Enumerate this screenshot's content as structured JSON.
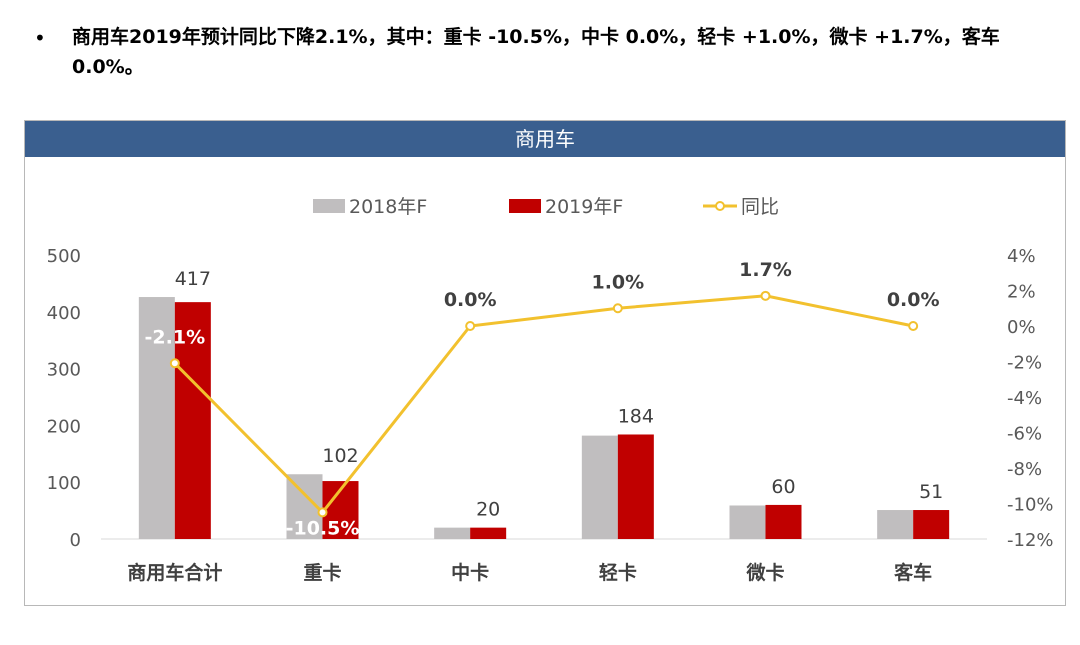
{
  "bullet": {
    "marker": "•",
    "text": "商用车2019年预计同比下降2.1%，其中：重卡 -10.5%，中卡 0.0%，轻卡 +1.0%，微卡 +1.7%，客车 0.0%。"
  },
  "colors": {
    "header_bg": "#3a5f8f",
    "series_2018": "#c0bebf",
    "series_2019": "#c00000",
    "yoy_line": "#f2c12e"
  },
  "chart_data": {
    "type": "bar",
    "title": "商用车",
    "categories": [
      "商用车合计",
      "重卡",
      "中卡",
      "轻卡",
      "微卡",
      "客车"
    ],
    "series": [
      {
        "name": "2018年F",
        "type": "bar",
        "axis": "left",
        "values": [
          426,
          114,
          20,
          182,
          59,
          51
        ]
      },
      {
        "name": "2019年F",
        "type": "bar",
        "axis": "left",
        "values": [
          417,
          102,
          20,
          184,
          60,
          51
        ],
        "labels": [
          "417",
          "102",
          "20",
          "184",
          "60",
          "51"
        ]
      },
      {
        "name": "同比",
        "type": "line",
        "axis": "right",
        "values": [
          -2.1,
          -10.5,
          0.0,
          1.0,
          1.7,
          0.0
        ],
        "labels": [
          "-2.1%",
          "-10.5%",
          "0.0%",
          "1.0%",
          "1.7%",
          "0.0%"
        ]
      }
    ],
    "y_left": {
      "ylim": [
        0,
        500
      ],
      "ticks": [
        "0",
        "100",
        "200",
        "300",
        "400",
        "500"
      ]
    },
    "y_right": {
      "ylim": [
        -12,
        4
      ],
      "ticks": [
        "-12%",
        "-10%",
        "-8%",
        "-6%",
        "-4%",
        "-2%",
        "0%",
        "2%",
        "4%"
      ]
    },
    "legend_position": "top-center",
    "grid": false
  }
}
